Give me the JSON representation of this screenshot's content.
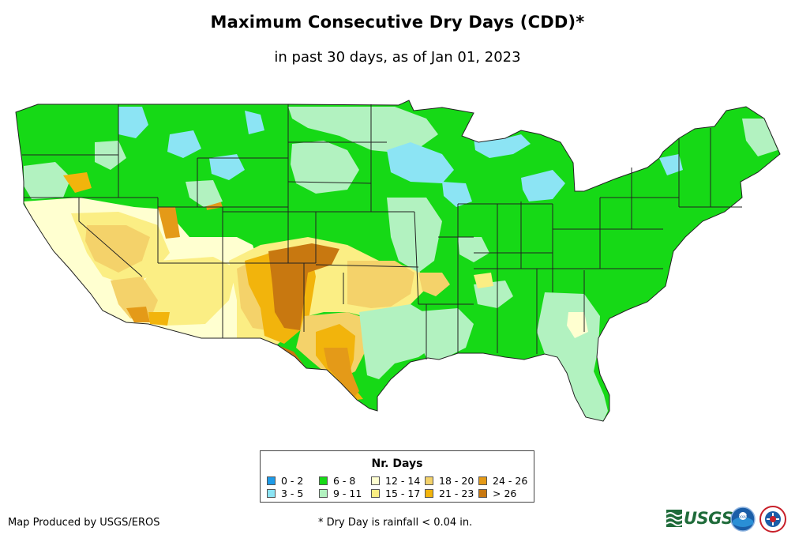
{
  "title": "Maximum Consecutive Dry Days (CDD)*",
  "subtitle": "in past 30 days, as of Jan 01, 2023",
  "legend": {
    "title": "Nr. Days",
    "items": [
      {
        "label": "0 - 2",
        "color": "#1e9be8"
      },
      {
        "label": "3 - 5",
        "color": "#8ce4f4"
      },
      {
        "label": "6 - 8",
        "color": "#16d916"
      },
      {
        "label": "9 - 11",
        "color": "#b2f2c0"
      },
      {
        "label": "12 - 14",
        "color": "#ffffd0"
      },
      {
        "label": "15 - 17",
        "color": "#fbee84"
      },
      {
        "label": "18 - 20",
        "color": "#f4d26a"
      },
      {
        "label": "21 - 23",
        "color": "#f2b40c"
      },
      {
        "label": "24 - 26",
        "color": "#e49a18"
      },
      {
        "label": "> 26",
        "color": "#c87810"
      }
    ]
  },
  "footer": {
    "credit": "Map Produced by USGS/EROS",
    "note": "* Dry Day is rainfall < 0.04 in."
  },
  "logos": {
    "usgs": "USGS",
    "noaa": "noaa"
  },
  "icons": {
    "usgs_mark": "usgs-wave-icon",
    "noaa": "noaa-logo-icon",
    "nws": "nws-logo-icon"
  }
}
